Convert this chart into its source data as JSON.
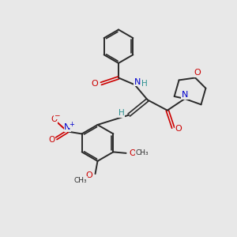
{
  "bg_color": "#e8e8e8",
  "bond_color": "#2a2a2a",
  "nitrogen_color": "#0000cc",
  "oxygen_color": "#cc0000",
  "hydrogen_color": "#2a9090",
  "figsize": [
    3.0,
    3.0
  ],
  "dpi": 100,
  "xlim": [
    0,
    10
  ],
  "ylim": [
    0,
    10
  ]
}
